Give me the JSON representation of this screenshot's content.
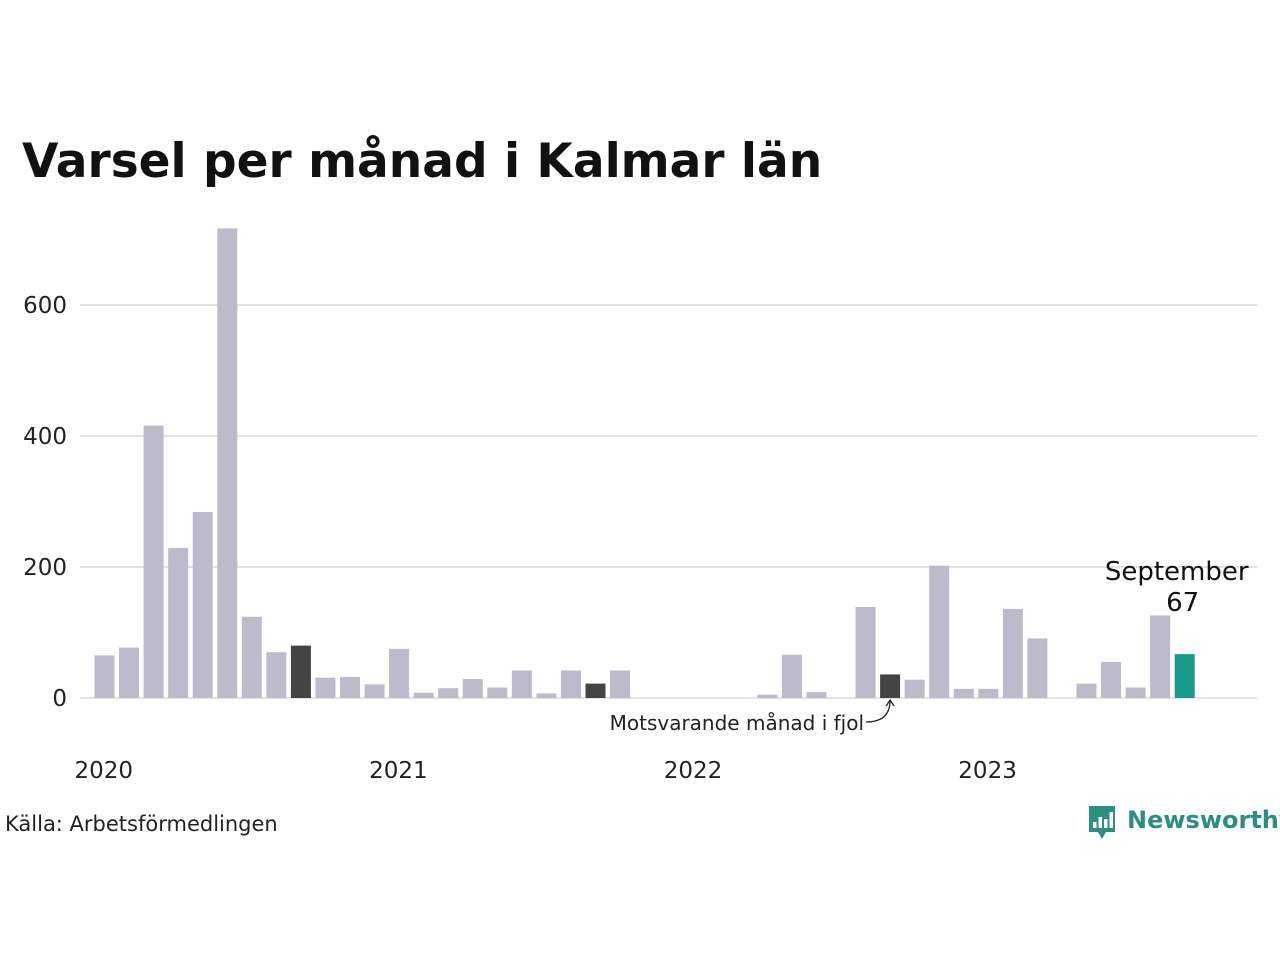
{
  "chart_data": {
    "type": "bar",
    "title": "Varsel per månad i Kalmar län",
    "xlabel": "",
    "ylabel": "",
    "ylim": [
      0,
      720
    ],
    "yticks": [
      0,
      200,
      400,
      600
    ],
    "grid": true,
    "x_year_labels": [
      "2020",
      "2021",
      "2022",
      "2023"
    ],
    "categories": [
      "2020-01",
      "2020-02",
      "2020-03",
      "2020-04",
      "2020-05",
      "2020-06",
      "2020-07",
      "2020-08",
      "2020-09",
      "2020-10",
      "2020-11",
      "2020-12",
      "2021-01",
      "2021-02",
      "2021-03",
      "2021-04",
      "2021-05",
      "2021-06",
      "2021-07",
      "2021-08",
      "2021-09",
      "2021-10",
      "2021-11",
      "2021-12",
      "2022-01",
      "2022-02",
      "2022-03",
      "2022-04",
      "2022-05",
      "2022-06",
      "2022-07",
      "2022-08",
      "2022-09",
      "2022-10",
      "2022-11",
      "2022-12",
      "2023-01",
      "2023-02",
      "2023-03",
      "2023-04",
      "2023-05",
      "2023-06",
      "2023-07",
      "2023-08",
      "2023-09"
    ],
    "values": [
      65,
      77,
      416,
      229,
      284,
      717,
      124,
      70,
      80,
      31,
      32,
      21,
      75,
      8,
      15,
      29,
      16,
      42,
      7,
      42,
      22,
      42,
      0,
      0,
      0,
      0,
      0,
      5,
      66,
      9,
      0,
      139,
      36,
      28,
      202,
      14,
      14,
      136,
      91,
      0,
      22,
      55,
      16,
      126,
      67
    ],
    "same_month_prev_year_indices": [
      8,
      20,
      32
    ],
    "highlight_index": 44,
    "highlight_label": "September",
    "highlight_value_label": "67",
    "annotation": "Motsvarande månad i fjol",
    "source": "Källa: Arbetsförmedlingen",
    "brand": "Newsworthy",
    "colors": {
      "default_bar": "#bdbbcb",
      "prev_year_bar": "#444444",
      "highlight_bar": "#1a9a8b",
      "grid": "#e2e2e2",
      "brand": "#2a8f7f"
    }
  }
}
